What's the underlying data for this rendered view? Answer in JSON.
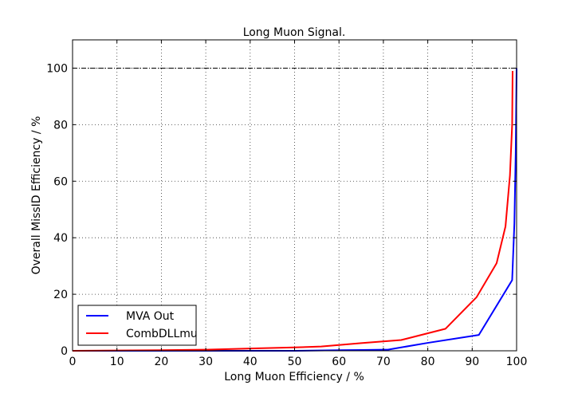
{
  "chart_data": {
    "type": "line",
    "title": "Long Muon Signal.",
    "xlabel": "Long Muon Efficiency / %",
    "ylabel": "Overall MissID Efficiency / %",
    "xlim": [
      0,
      100
    ],
    "ylim": [
      0,
      110
    ],
    "xticks": [
      0,
      10,
      20,
      30,
      40,
      50,
      60,
      70,
      80,
      90,
      100
    ],
    "yticks": [
      0,
      20,
      40,
      60,
      80,
      100
    ],
    "xtick_labels": [
      "0",
      "10",
      "20",
      "30",
      "40",
      "50",
      "60",
      "70",
      "80",
      "90",
      "100"
    ],
    "ytick_labels": [
      "0",
      "20",
      "40",
      "60",
      "80",
      "100"
    ],
    "grid": true,
    "legend_position": "lower-left",
    "reference_lines": [
      {
        "axis": "y",
        "value": 100,
        "style": "dash-dot",
        "color": "#000000"
      },
      {
        "axis": "x",
        "value": 100,
        "style": "dash-dot",
        "color": "#000000"
      }
    ],
    "series": [
      {
        "name": "MVA Out",
        "color": "#0000ff",
        "x": [
          0,
          10,
          20,
          30,
          40,
          50,
          60,
          65,
          70,
          71,
          80,
          91.5,
          99,
          99.5,
          99.8,
          100
        ],
        "y": [
          0,
          0,
          0,
          0,
          0,
          0,
          0.2,
          0.3,
          0.4,
          0.4,
          2.8,
          5.6,
          25,
          45,
          70,
          100
        ]
      },
      {
        "name": "CombDLLmu",
        "color": "#ff0000",
        "x": [
          0,
          10,
          20,
          30,
          40,
          50,
          56,
          65,
          74,
          84,
          91,
          95.5,
          97.5,
          98.5,
          99,
          99.1
        ],
        "y": [
          0,
          0.1,
          0.2,
          0.4,
          0.8,
          1.2,
          1.5,
          2.7,
          3.8,
          7.8,
          19,
          31,
          44,
          62,
          80,
          99
        ]
      }
    ]
  }
}
